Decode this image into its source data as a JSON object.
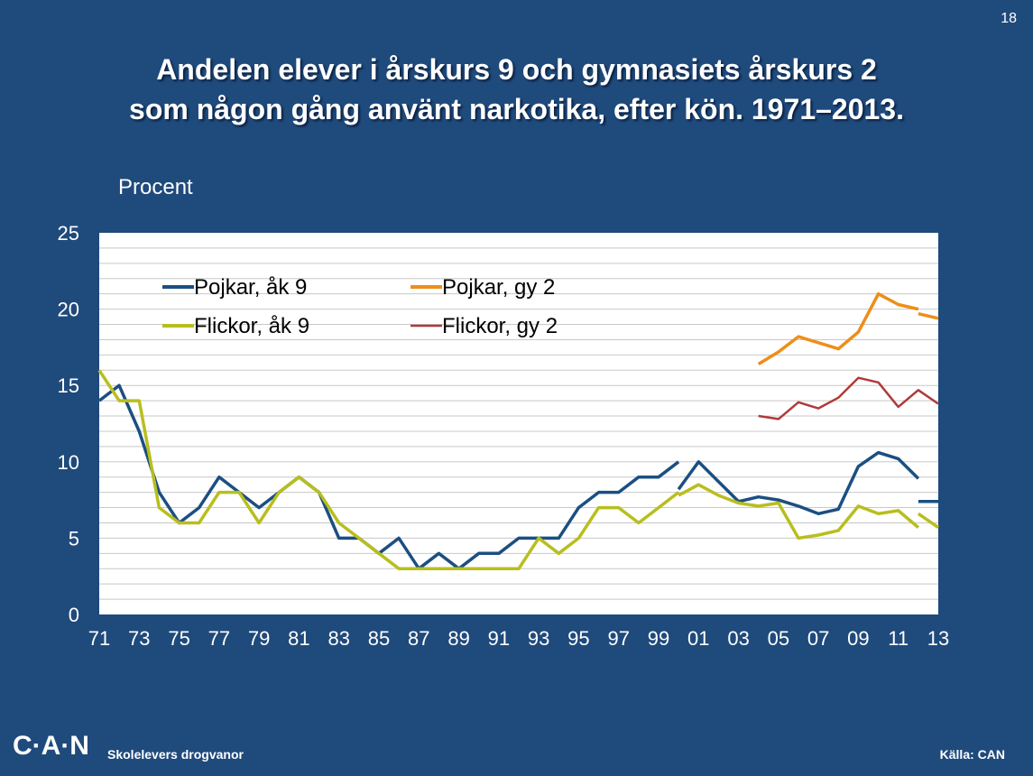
{
  "page_number": "18",
  "title_line1": "Andelen elever i årskurs 9 och gymnasiets årskurs 2",
  "title_line2": "som någon gång använt narkotika, efter kön. 1971–2013.",
  "footer": {
    "logo": "C·A·N",
    "subtitle": "Skolelevers drogvanor",
    "source": "Källa: CAN"
  },
  "colors": {
    "background": "#1f4a7c",
    "plot_background": "#ffffff",
    "gridline": "#c8c8c8",
    "pojkar_ak9": "#1b4f82",
    "flickor_ak9": "#b8be1e",
    "pojkar_gy2": "#ee8e1a",
    "flickor_gy2": "#b03a3a"
  },
  "chart_data": {
    "type": "line",
    "title": "Andelen elever i årskurs 9 och gymnasiets årskurs 2 som någon gång använt narkotika, efter kön. 1971–2013.",
    "ylabel": "Procent",
    "xlabel": "",
    "ylim": [
      0,
      25
    ],
    "yticks": [
      0,
      5,
      10,
      15,
      20,
      25
    ],
    "xlim": [
      1971,
      2013
    ],
    "xticks": [
      1971,
      1973,
      1975,
      1977,
      1979,
      1981,
      1983,
      1985,
      1987,
      1989,
      1991,
      1993,
      1995,
      1997,
      1999,
      2001,
      2003,
      2005,
      2007,
      2009,
      2011,
      2013
    ],
    "xtick_labels": [
      "71",
      "73",
      "75",
      "77",
      "79",
      "81",
      "83",
      "85",
      "87",
      "89",
      "91",
      "93",
      "95",
      "97",
      "99",
      "01",
      "03",
      "05",
      "07",
      "09",
      "11",
      "13"
    ],
    "grid": true,
    "legend_position": "top-left",
    "series": [
      {
        "name": "Pojkar, åk 9",
        "color": "#1b4f82",
        "segments": [
          [
            [
              1971,
              14
            ],
            [
              1972,
              15
            ],
            [
              1973,
              12
            ],
            [
              1974,
              8
            ],
            [
              1975,
              6
            ],
            [
              1976,
              7
            ],
            [
              1977,
              9
            ],
            [
              1978,
              8
            ],
            [
              1979,
              7
            ],
            [
              1980,
              8
            ],
            [
              1981,
              9
            ],
            [
              1982,
              8
            ],
            [
              1983,
              5
            ],
            [
              1984,
              5
            ],
            [
              1985,
              4
            ],
            [
              1986,
              5
            ],
            [
              1987,
              3
            ],
            [
              1988,
              4
            ],
            [
              1989,
              3
            ],
            [
              1990,
              4
            ],
            [
              1991,
              4
            ],
            [
              1992,
              5
            ],
            [
              1993,
              5
            ],
            [
              1994,
              5
            ],
            [
              1995,
              7
            ],
            [
              1996,
              8
            ],
            [
              1997,
              8
            ],
            [
              1998,
              9
            ],
            [
              1999,
              9
            ],
            [
              2000,
              10
            ]
          ],
          [
            [
              2000,
              8.2
            ],
            [
              2001,
              10
            ],
            [
              2002,
              8.7
            ],
            [
              2003,
              7.4
            ],
            [
              2004,
              7.7
            ],
            [
              2005,
              7.5
            ],
            [
              2006,
              7.1
            ],
            [
              2007,
              6.6
            ],
            [
              2008,
              6.9
            ],
            [
              2009,
              9.7
            ],
            [
              2010,
              10.6
            ],
            [
              2011,
              10.2
            ],
            [
              2012,
              8.9
            ]
          ],
          [
            [
              2012,
              7.4
            ],
            [
              2013,
              7.4
            ]
          ]
        ]
      },
      {
        "name": "Flickor, åk 9",
        "color": "#b8be1e",
        "segments": [
          [
            [
              1971,
              16
            ],
            [
              1972,
              14
            ],
            [
              1973,
              14
            ],
            [
              1974,
              7
            ],
            [
              1975,
              6
            ],
            [
              1976,
              6
            ],
            [
              1977,
              8
            ],
            [
              1978,
              8
            ],
            [
              1979,
              6
            ],
            [
              1980,
              8
            ],
            [
              1981,
              9
            ],
            [
              1982,
              8
            ],
            [
              1983,
              6
            ],
            [
              1984,
              5
            ],
            [
              1985,
              4
            ],
            [
              1986,
              3
            ],
            [
              1987,
              3
            ],
            [
              1988,
              3
            ],
            [
              1989,
              3
            ],
            [
              1990,
              3
            ],
            [
              1991,
              3
            ],
            [
              1992,
              3
            ],
            [
              1993,
              5
            ],
            [
              1994,
              4
            ],
            [
              1995,
              5
            ],
            [
              1996,
              7
            ],
            [
              1997,
              7
            ],
            [
              1998,
              6
            ],
            [
              1999,
              7
            ],
            [
              2000,
              8
            ]
          ],
          [
            [
              2000,
              7.8
            ],
            [
              2001,
              8.5
            ],
            [
              2002,
              7.8
            ],
            [
              2003,
              7.3
            ],
            [
              2004,
              7.1
            ],
            [
              2005,
              7.3
            ],
            [
              2006,
              5.0
            ],
            [
              2007,
              5.2
            ],
            [
              2008,
              5.5
            ],
            [
              2009,
              7.1
            ],
            [
              2010,
              6.6
            ],
            [
              2011,
              6.8
            ],
            [
              2012,
              5.7
            ]
          ],
          [
            [
              2012,
              6.6
            ],
            [
              2013,
              5.7
            ]
          ]
        ]
      },
      {
        "name": "Pojkar, gy 2",
        "color": "#ee8e1a",
        "segments": [
          [
            [
              2004,
              16.4
            ],
            [
              2005,
              17.2
            ],
            [
              2006,
              18.2
            ],
            [
              2007,
              17.8
            ],
            [
              2008,
              17.4
            ],
            [
              2009,
              18.5
            ],
            [
              2010,
              21.0
            ],
            [
              2011,
              20.3
            ],
            [
              2012,
              20.0
            ]
          ],
          [
            [
              2012,
              19.7
            ],
            [
              2013,
              19.4
            ]
          ]
        ]
      },
      {
        "name": "Flickor, gy 2",
        "color": "#b03a3a",
        "segments": [
          [
            [
              2004,
              13.0
            ],
            [
              2005,
              12.8
            ],
            [
              2006,
              13.9
            ],
            [
              2007,
              13.5
            ],
            [
              2008,
              14.2
            ],
            [
              2009,
              15.5
            ],
            [
              2010,
              15.2
            ],
            [
              2011,
              13.6
            ],
            [
              2012,
              14.7
            ],
            [
              2013,
              13.8
            ]
          ]
        ]
      }
    ]
  }
}
